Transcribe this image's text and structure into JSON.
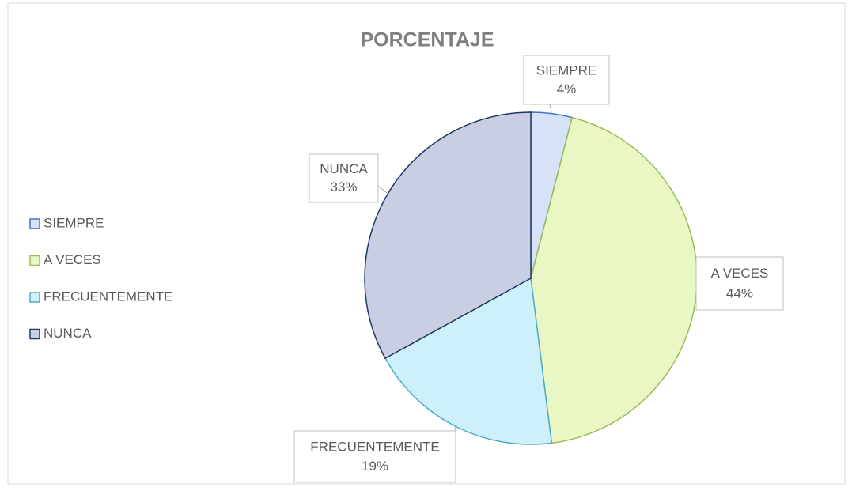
{
  "chart_data": {
    "type": "pie",
    "title": "PORCENTAJE",
    "categories": [
      "SIEMPRE",
      "A VECES",
      "FRECUENTEMENTE",
      "NUNCA"
    ],
    "values": [
      4,
      44,
      19,
      33
    ],
    "value_labels": [
      "4%",
      "44%",
      "19%",
      "33%"
    ],
    "colors": [
      "#d6e2f7",
      "#e8f7c4",
      "#cdf0fb",
      "#c9cee2"
    ],
    "border_colors": [
      "#4472c4",
      "#9bbb59",
      "#4bacc6",
      "#1f3864"
    ],
    "legend": "left"
  }
}
